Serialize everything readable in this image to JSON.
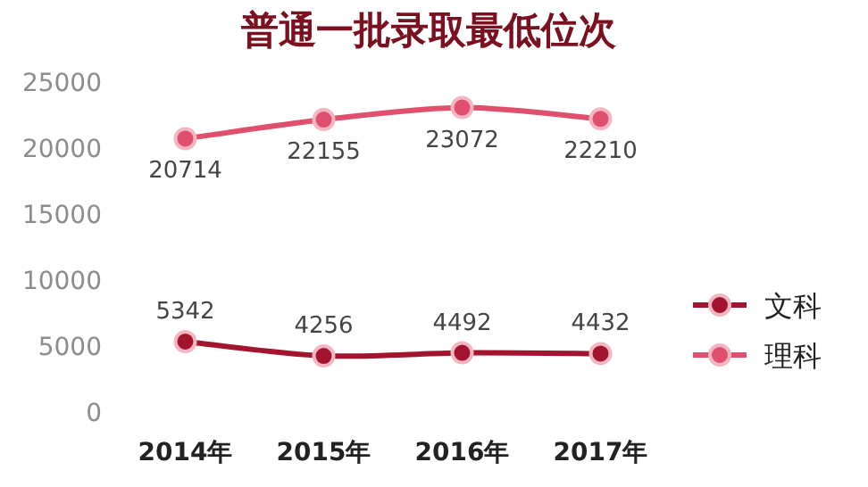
{
  "chart_data": {
    "type": "line",
    "title": "普通一批录取最低位次",
    "categories": [
      "2014年",
      "2015年",
      "2016年",
      "2017年"
    ],
    "series": [
      {
        "name": "文科",
        "color": "#a3152e",
        "values": [
          5342,
          4256,
          4492,
          4432
        ]
      },
      {
        "name": "理科",
        "color": "#e0506e",
        "values": [
          20714,
          22155,
          23072,
          22210
        ]
      }
    ],
    "ylim": [
      0,
      25000
    ],
    "yticks": [
      0,
      5000,
      10000,
      15000,
      20000,
      25000
    ],
    "data_labels": true,
    "legend": "right",
    "marker": "circle"
  }
}
